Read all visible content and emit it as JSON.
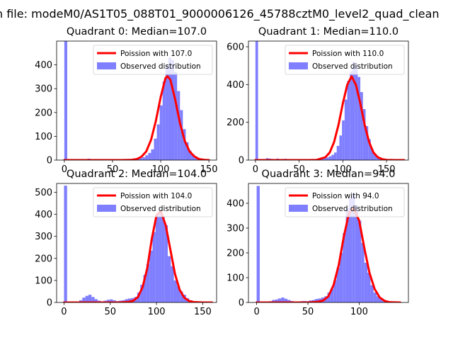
{
  "figure": {
    "suptitle": "n file: modeM0/AS1T05_088T01_9000006126_45788cztM0_level2_quad_clean"
  },
  "colors": {
    "poisson": "#ff0000",
    "observed": "#7f7fff",
    "axis": "#000000",
    "legend_border": "#d0d0d0"
  },
  "chart_data": [
    {
      "type": "bar",
      "title": "Quadrant 0: Median=107.0",
      "xlim": [
        -8,
        158
      ],
      "ylim": [
        0,
        500
      ],
      "xticks": [
        0,
        50,
        100,
        150
      ],
      "yticks": [
        0,
        100,
        200,
        300,
        400
      ],
      "bin_width": 3,
      "bins_x": [
        0,
        3,
        6,
        9,
        12,
        15,
        18,
        21,
        24,
        27,
        30,
        33,
        36,
        39,
        42,
        45,
        48,
        51,
        54,
        57,
        60,
        63,
        66,
        69,
        72,
        75,
        78,
        81,
        84,
        87,
        90,
        93,
        96,
        99,
        102,
        105,
        108,
        111,
        114,
        117,
        120,
        123,
        126,
        129,
        132,
        135,
        138,
        141,
        144,
        147
      ],
      "observed": [
        500,
        0,
        0,
        0,
        0,
        0,
        0,
        2,
        6,
        2,
        0,
        0,
        2,
        0,
        0,
        0,
        0,
        0,
        0,
        0,
        0,
        2,
        0,
        0,
        5,
        8,
        8,
        12,
        20,
        30,
        45,
        90,
        150,
        230,
        330,
        400,
        430,
        420,
        370,
        290,
        210,
        130,
        75,
        40,
        25,
        15,
        8,
        5,
        3,
        2
      ],
      "poisson_mean": 107.0,
      "poisson_x": [
        0,
        60,
        70,
        75,
        80,
        85,
        90,
        95,
        100,
        105,
        107,
        110,
        115,
        120,
        125,
        130,
        135,
        140,
        145,
        150
      ],
      "poisson_y": [
        0,
        0,
        1,
        4,
        14,
        36,
        85,
        165,
        265,
        345,
        352,
        338,
        255,
        155,
        80,
        36,
        15,
        4,
        1,
        0
      ],
      "legend": [
        "Poission with 107.0",
        "Observed distribution"
      ]
    },
    {
      "type": "bar",
      "title": "Quadrant 1: Median=110.0",
      "xlim": [
        -8,
        175
      ],
      "ylim": [
        0,
        630
      ],
      "xticks": [
        0,
        50,
        100,
        150
      ],
      "yticks": [
        0,
        200,
        400,
        600
      ],
      "bin_width": 3,
      "bins_x": [
        0,
        3,
        6,
        9,
        12,
        15,
        18,
        21,
        24,
        27,
        30,
        33,
        36,
        39,
        42,
        45,
        48,
        51,
        54,
        57,
        60,
        63,
        66,
        69,
        72,
        75,
        78,
        81,
        84,
        87,
        90,
        93,
        96,
        99,
        102,
        105,
        108,
        111,
        114,
        117,
        120,
        123,
        126,
        129,
        132,
        135,
        138,
        141,
        144,
        147,
        150,
        153,
        156,
        159,
        162,
        165
      ],
      "observed": [
        630,
        0,
        0,
        5,
        10,
        8,
        6,
        4,
        8,
        5,
        6,
        7,
        5,
        3,
        4,
        3,
        3,
        4,
        2,
        3,
        2,
        3,
        4,
        3,
        6,
        8,
        10,
        14,
        20,
        28,
        40,
        75,
        130,
        210,
        320,
        420,
        470,
        520,
        500,
        440,
        360,
        270,
        180,
        110,
        60,
        30,
        15,
        8,
        4,
        2,
        1,
        0,
        0,
        0,
        0,
        0
      ],
      "poisson_mean": 110.0,
      "poisson_x": [
        0,
        60,
        70,
        80,
        85,
        90,
        95,
        100,
        105,
        110,
        115,
        120,
        125,
        130,
        135,
        140,
        145,
        150,
        160,
        170
      ],
      "poisson_y": [
        0,
        0,
        1,
        15,
        40,
        96,
        186,
        300,
        398,
        443,
        398,
        300,
        186,
        96,
        40,
        15,
        5,
        1,
        0,
        0
      ],
      "legend": [
        "Poission with 110.0",
        "Observed distribution"
      ]
    },
    {
      "type": "bar",
      "title": "Quadrant 2: Median=104.0",
      "xlim": [
        -8,
        165
      ],
      "ylim": [
        0,
        540
      ],
      "xticks": [
        0,
        50,
        100,
        150
      ],
      "yticks": [
        0,
        100,
        200,
        300,
        400,
        500
      ],
      "bin_width": 3.3,
      "bins_x": [
        0,
        3.3,
        6.6,
        9.9,
        13.2,
        16.5,
        19.8,
        23.1,
        26.4,
        29.7,
        33,
        36.3,
        39.6,
        42.9,
        46.2,
        49.5,
        52.8,
        56.1,
        59.4,
        62.7,
        66,
        69.3,
        72.6,
        75.9,
        79.2,
        82.5,
        85.8,
        89.1,
        92.4,
        95.7,
        99,
        102.3,
        105.6,
        108.9,
        112.2,
        115.5,
        118.8,
        122.1,
        125.4,
        128.7,
        132,
        135.3,
        138.6,
        141.9,
        145.2,
        148.5,
        151.8,
        155.1,
        158.4
      ],
      "observed": [
        530,
        0,
        0,
        0,
        0,
        10,
        22,
        30,
        35,
        25,
        15,
        8,
        5,
        8,
        12,
        14,
        10,
        6,
        8,
        10,
        15,
        18,
        20,
        25,
        45,
        80,
        125,
        175,
        235,
        320,
        395,
        420,
        390,
        350,
        210,
        165,
        100,
        75,
        50,
        35,
        20,
        10,
        5,
        3,
        2,
        1,
        0,
        0,
        0
      ],
      "poisson_mean": 104.0,
      "poisson_x": [
        0,
        60,
        70,
        75,
        80,
        85,
        90,
        95,
        100,
        104,
        105,
        110,
        115,
        120,
        125,
        130,
        135,
        140,
        150,
        160
      ],
      "poisson_y": [
        0,
        0,
        3,
        8,
        25,
        70,
        155,
        290,
        395,
        412,
        410,
        350,
        240,
        130,
        58,
        22,
        7,
        2,
        0,
        0
      ],
      "legend": [
        "Poission with 104.0",
        "Observed distribution"
      ]
    },
    {
      "type": "bar",
      "title": "Quadrant 3: Median=94.0",
      "xlim": [
        -8,
        148
      ],
      "ylim": [
        0,
        480
      ],
      "xticks": [
        0,
        50,
        100
      ],
      "yticks": [
        0,
        100,
        200,
        300,
        400
      ],
      "bin_width": 3,
      "bins_x": [
        0,
        3,
        6,
        9,
        12,
        15,
        18,
        21,
        24,
        27,
        30,
        33,
        36,
        39,
        42,
        45,
        48,
        51,
        54,
        57,
        60,
        63,
        66,
        69,
        72,
        75,
        78,
        81,
        84,
        87,
        90,
        93,
        96,
        99,
        102,
        105,
        108,
        111,
        114,
        117,
        120,
        123,
        126,
        129,
        132,
        135,
        138,
        141
      ],
      "observed": [
        470,
        0,
        0,
        0,
        5,
        10,
        12,
        16,
        20,
        15,
        10,
        6,
        4,
        3,
        5,
        6,
        5,
        8,
        10,
        14,
        16,
        20,
        25,
        40,
        55,
        90,
        140,
        200,
        280,
        380,
        420,
        440,
        390,
        330,
        240,
        160,
        120,
        70,
        40,
        25,
        15,
        8,
        4,
        2,
        1,
        0,
        0,
        0
      ],
      "poisson_mean": 94.0,
      "poisson_x": [
        0,
        50,
        60,
        65,
        70,
        75,
        80,
        85,
        90,
        94,
        95,
        100,
        105,
        110,
        115,
        120,
        125,
        130,
        140
      ],
      "poisson_y": [
        0,
        0,
        3,
        8,
        25,
        70,
        150,
        265,
        360,
        380,
        375,
        330,
        220,
        120,
        55,
        20,
        6,
        1,
        0
      ],
      "legend": [
        "Poission with 94.0",
        "Observed distribution"
      ]
    }
  ]
}
